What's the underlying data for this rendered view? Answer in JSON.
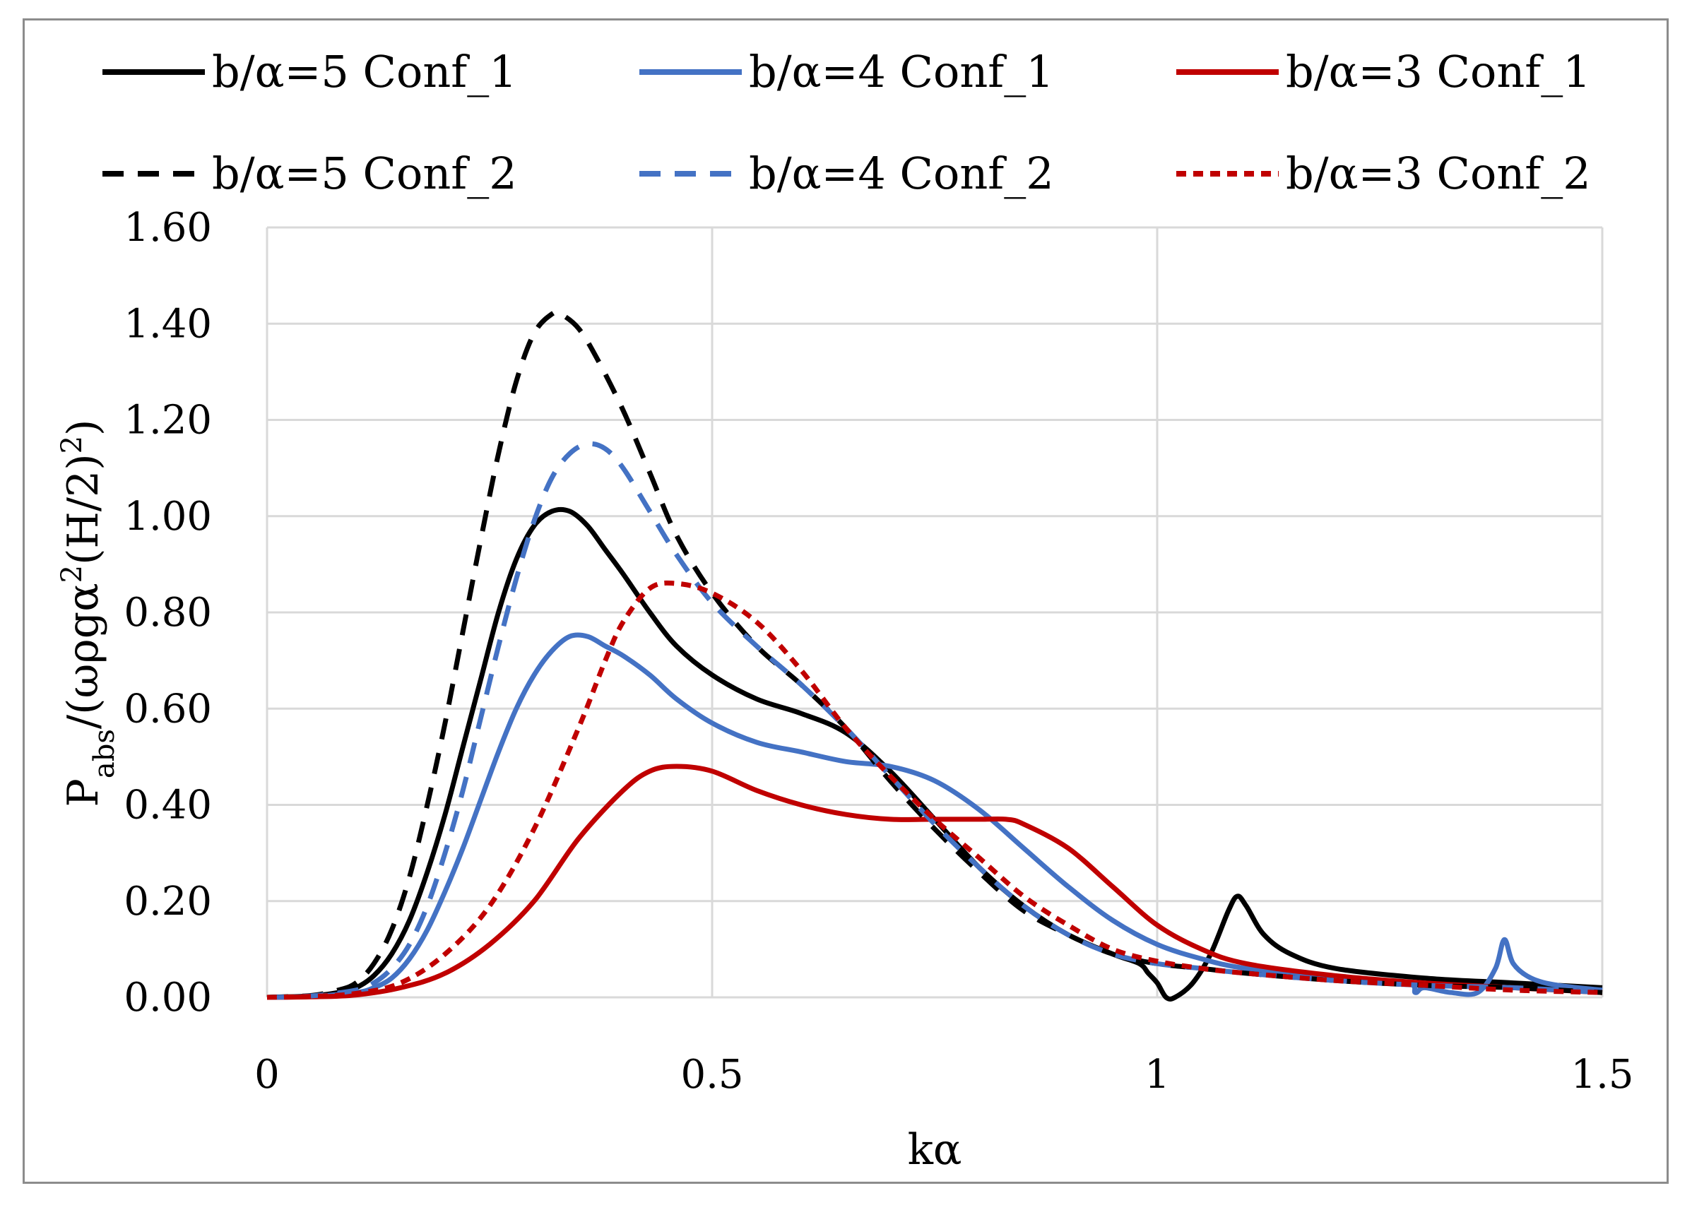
{
  "chart_data": {
    "type": "line",
    "title": "",
    "xlabel": "kα",
    "ylabel": "Pabs/(ωρgα2(H/2)2)",
    "ylabel_parts": {
      "main": "P",
      "sub": "abs",
      "mid1": "/(ωρgα",
      "sup1": "2",
      "mid2": "(H/2)",
      "sup2": "2",
      "end": ")"
    },
    "xlim": [
      0,
      1.5
    ],
    "ylim": [
      0,
      1.6
    ],
    "xticks": [
      0,
      0.5,
      1,
      1.5
    ],
    "xtick_labels": [
      "0",
      "0.5",
      "1",
      "1.5"
    ],
    "yticks": [
      0,
      0.2,
      0.4,
      0.6,
      0.8,
      1.0,
      1.2,
      1.4,
      1.6
    ],
    "ytick_labels": [
      "0.00",
      "0.20",
      "0.40",
      "0.60",
      "0.80",
      "1.00",
      "1.20",
      "1.40",
      "1.60"
    ],
    "grid": true,
    "legend_position": "top",
    "series": [
      {
        "name": "b/α=5 Conf_1",
        "color": "#000000",
        "dash": "solid",
        "x": [
          0,
          0.05,
          0.08,
          0.1,
          0.12,
          0.14,
          0.16,
          0.18,
          0.2,
          0.22,
          0.24,
          0.26,
          0.28,
          0.3,
          0.32,
          0.34,
          0.36,
          0.38,
          0.4,
          0.43,
          0.46,
          0.5,
          0.55,
          0.6,
          0.65,
          0.7,
          0.75,
          0.8,
          0.85,
          0.9,
          0.95,
          0.98,
          0.99,
          1.0,
          1.01,
          1.02,
          1.04,
          1.06,
          1.08,
          1.09,
          1.1,
          1.12,
          1.15,
          1.2,
          1.3,
          1.4,
          1.5
        ],
        "y": [
          0,
          0.003,
          0.01,
          0.02,
          0.045,
          0.09,
          0.16,
          0.26,
          0.38,
          0.52,
          0.66,
          0.8,
          0.91,
          0.98,
          1.01,
          1.01,
          0.98,
          0.93,
          0.88,
          0.8,
          0.73,
          0.67,
          0.62,
          0.59,
          0.55,
          0.47,
          0.37,
          0.27,
          0.19,
          0.13,
          0.09,
          0.07,
          0.05,
          0.03,
          0.0,
          0.0,
          0.03,
          0.09,
          0.18,
          0.21,
          0.19,
          0.13,
          0.09,
          0.06,
          0.04,
          0.03,
          0.02
        ]
      },
      {
        "name": "b/α=4 Conf_1",
        "color": "#4472c4",
        "dash": "solid",
        "x": [
          0,
          0.05,
          0.1,
          0.12,
          0.14,
          0.16,
          0.18,
          0.2,
          0.22,
          0.24,
          0.26,
          0.28,
          0.3,
          0.32,
          0.34,
          0.36,
          0.38,
          0.4,
          0.43,
          0.46,
          0.5,
          0.55,
          0.6,
          0.65,
          0.7,
          0.75,
          0.8,
          0.85,
          0.9,
          0.95,
          1.0,
          1.05,
          1.1,
          1.2,
          1.28,
          1.29,
          1.3,
          1.33,
          1.36,
          1.38,
          1.39,
          1.4,
          1.42,
          1.45,
          1.5
        ],
        "y": [
          0,
          0.002,
          0.01,
          0.02,
          0.04,
          0.08,
          0.14,
          0.22,
          0.31,
          0.41,
          0.51,
          0.6,
          0.67,
          0.72,
          0.75,
          0.75,
          0.73,
          0.71,
          0.67,
          0.62,
          0.57,
          0.53,
          0.51,
          0.49,
          0.48,
          0.45,
          0.39,
          0.31,
          0.23,
          0.16,
          0.11,
          0.08,
          0.06,
          0.04,
          0.03,
          0.01,
          0.02,
          0.01,
          0.01,
          0.06,
          0.12,
          0.07,
          0.04,
          0.025,
          0.015
        ]
      },
      {
        "name": "b/α=3 Conf_1",
        "color": "#c00000",
        "dash": "solid",
        "x": [
          0,
          0.05,
          0.1,
          0.15,
          0.2,
          0.25,
          0.3,
          0.35,
          0.4,
          0.43,
          0.46,
          0.5,
          0.55,
          0.6,
          0.65,
          0.7,
          0.75,
          0.8,
          0.83,
          0.85,
          0.9,
          0.95,
          1.0,
          1.05,
          1.1,
          1.2,
          1.3,
          1.4,
          1.5
        ],
        "y": [
          0,
          0.001,
          0.005,
          0.02,
          0.05,
          0.11,
          0.2,
          0.33,
          0.43,
          0.47,
          0.48,
          0.47,
          0.43,
          0.4,
          0.38,
          0.37,
          0.37,
          0.37,
          0.37,
          0.36,
          0.31,
          0.23,
          0.15,
          0.1,
          0.07,
          0.045,
          0.03,
          0.02,
          0.01
        ]
      },
      {
        "name": "b/α=5 Conf_2",
        "color": "#000000",
        "dash": "long",
        "x": [
          0,
          0.05,
          0.08,
          0.1,
          0.12,
          0.14,
          0.16,
          0.18,
          0.2,
          0.22,
          0.24,
          0.26,
          0.28,
          0.3,
          0.32,
          0.33,
          0.35,
          0.37,
          0.4,
          0.43,
          0.46,
          0.5,
          0.55,
          0.6,
          0.65,
          0.7,
          0.75,
          0.8,
          0.85,
          0.9,
          0.95,
          1.0,
          1.05,
          1.1,
          1.2,
          1.3,
          1.4,
          1.5
        ],
        "y": [
          0,
          0.004,
          0.015,
          0.03,
          0.07,
          0.14,
          0.25,
          0.4,
          0.57,
          0.76,
          0.95,
          1.13,
          1.28,
          1.38,
          1.42,
          1.42,
          1.39,
          1.33,
          1.22,
          1.09,
          0.96,
          0.84,
          0.73,
          0.65,
          0.56,
          0.45,
          0.35,
          0.26,
          0.18,
          0.13,
          0.09,
          0.07,
          0.06,
          0.05,
          0.035,
          0.025,
          0.02,
          0.01
        ]
      },
      {
        "name": "b/α=4 Conf_2",
        "color": "#4472c4",
        "dash": "long",
        "x": [
          0,
          0.05,
          0.1,
          0.12,
          0.14,
          0.16,
          0.18,
          0.2,
          0.22,
          0.24,
          0.26,
          0.28,
          0.3,
          0.32,
          0.34,
          0.36,
          0.38,
          0.4,
          0.43,
          0.46,
          0.5,
          0.55,
          0.6,
          0.65,
          0.7,
          0.75,
          0.8,
          0.85,
          0.9,
          0.95,
          1.0,
          1.05,
          1.1,
          1.2,
          1.3,
          1.4,
          1.5
        ],
        "y": [
          0,
          0.003,
          0.015,
          0.03,
          0.06,
          0.11,
          0.19,
          0.3,
          0.43,
          0.58,
          0.73,
          0.87,
          0.99,
          1.08,
          1.13,
          1.15,
          1.14,
          1.1,
          1.01,
          0.92,
          0.82,
          0.73,
          0.65,
          0.56,
          0.46,
          0.36,
          0.27,
          0.19,
          0.13,
          0.09,
          0.07,
          0.06,
          0.05,
          0.035,
          0.025,
          0.02,
          0.01
        ]
      },
      {
        "name": "b/α=3 Conf_2",
        "color": "#c00000",
        "dash": "short",
        "x": [
          0,
          0.05,
          0.1,
          0.15,
          0.2,
          0.25,
          0.3,
          0.35,
          0.38,
          0.4,
          0.43,
          0.46,
          0.5,
          0.55,
          0.6,
          0.65,
          0.7,
          0.75,
          0.8,
          0.85,
          0.9,
          0.95,
          1.0,
          1.05,
          1.1,
          1.2,
          1.3,
          1.4,
          1.5
        ],
        "y": [
          0,
          0.002,
          0.008,
          0.03,
          0.09,
          0.19,
          0.35,
          0.56,
          0.7,
          0.78,
          0.85,
          0.86,
          0.84,
          0.78,
          0.68,
          0.56,
          0.46,
          0.37,
          0.29,
          0.21,
          0.15,
          0.1,
          0.075,
          0.06,
          0.05,
          0.035,
          0.025,
          0.015,
          0.01
        ]
      }
    ]
  }
}
